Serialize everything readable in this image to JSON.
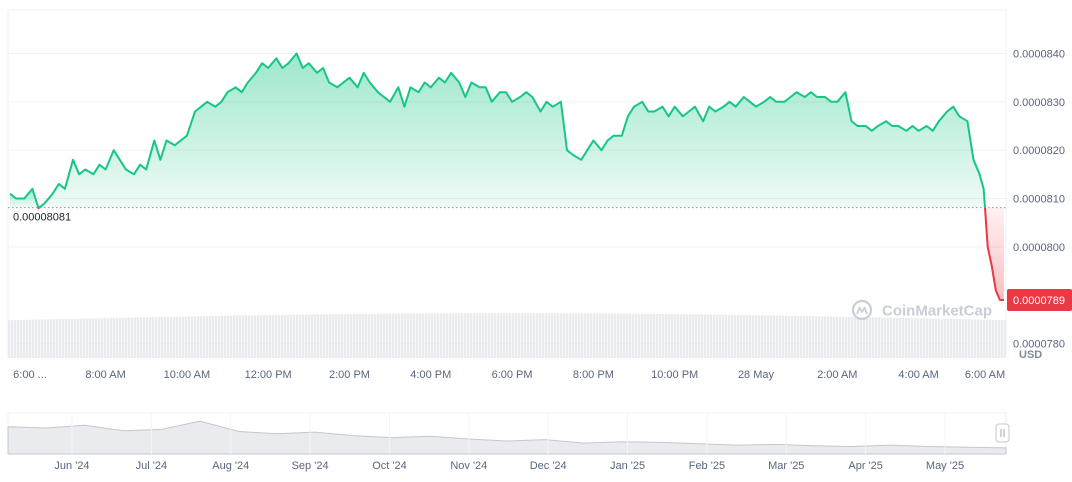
{
  "chart_data": {
    "type": "area",
    "currency": "USD",
    "watermark": "CoinMarketCap",
    "ylim": [
      7.77e-05,
      8.49e-05
    ],
    "yticks": [
      "0.0000840",
      "0.0000830",
      "0.0000820",
      "0.0000810",
      "0.0000800",
      "0.0000780"
    ],
    "ytick_values": [
      8.4e-05,
      8.3e-05,
      8.2e-05,
      8.1e-05,
      8e-05,
      7.8e-05
    ],
    "reference_price": 8.081e-05,
    "reference_label": "0.00008081",
    "current_price": 7.89e-05,
    "current_label": "0.0000789",
    "xticks": [
      "6:00 ...",
      "8:00 AM",
      "10:00 AM",
      "12:00 PM",
      "2:00 PM",
      "4:00 PM",
      "6:00 PM",
      "8:00 PM",
      "10:00 PM",
      "28 May",
      "2:00 AM",
      "4:00 AM",
      "6:00 AM"
    ],
    "xtick_hours": [
      5.6,
      8,
      10,
      12,
      14,
      16,
      18,
      20,
      22,
      24,
      26,
      28,
      30
    ],
    "hours": [
      5.65,
      5.8,
      6.0,
      6.2,
      6.35,
      6.5,
      6.7,
      6.85,
      7.0,
      7.2,
      7.35,
      7.5,
      7.7,
      7.85,
      8.0,
      8.2,
      8.35,
      8.5,
      8.7,
      8.85,
      9.0,
      9.2,
      9.35,
      9.5,
      9.7,
      9.85,
      10.0,
      10.2,
      10.35,
      10.5,
      10.7,
      10.85,
      11.0,
      11.2,
      11.35,
      11.5,
      11.7,
      11.85,
      12.0,
      12.2,
      12.35,
      12.5,
      12.7,
      12.85,
      13.0,
      13.2,
      13.35,
      13.5,
      13.7,
      13.85,
      14.0,
      14.2,
      14.35,
      14.5,
      14.7,
      14.85,
      15.0,
      15.2,
      15.35,
      15.5,
      15.7,
      15.85,
      16.0,
      16.2,
      16.35,
      16.5,
      16.7,
      16.85,
      17.0,
      17.2,
      17.35,
      17.5,
      17.7,
      17.85,
      18.0,
      18.2,
      18.35,
      18.5,
      18.7,
      18.85,
      19.0,
      19.2,
      19.35,
      19.5,
      19.7,
      19.85,
      20.0,
      20.2,
      20.35,
      20.5,
      20.7,
      20.85,
      21.0,
      21.2,
      21.35,
      21.5,
      21.7,
      21.85,
      22.0,
      22.2,
      22.35,
      22.5,
      22.7,
      22.85,
      23.0,
      23.2,
      23.35,
      23.5,
      23.7,
      23.85,
      24.0,
      24.2,
      24.35,
      24.5,
      24.7,
      24.85,
      25.0,
      25.2,
      25.35,
      25.5,
      25.7,
      25.85,
      26.0,
      26.2,
      26.35,
      26.5,
      26.7,
      26.85,
      27.0,
      27.2,
      27.35,
      27.5,
      27.7,
      27.85,
      28.0,
      28.2,
      28.35,
      28.5,
      28.7,
      28.85,
      29.0,
      29.2,
      29.35,
      29.5,
      29.6,
      29.7,
      29.8,
      29.9,
      30.0,
      30.1
    ],
    "prices": [
      8.11e-05,
      8.1e-05,
      8.1e-05,
      8.12e-05,
      8.08e-05,
      8.09e-05,
      8.11e-05,
      8.13e-05,
      8.12e-05,
      8.18e-05,
      8.15e-05,
      8.16e-05,
      8.15e-05,
      8.17e-05,
      8.16e-05,
      8.2e-05,
      8.18e-05,
      8.16e-05,
      8.15e-05,
      8.17e-05,
      8.16e-05,
      8.22e-05,
      8.18e-05,
      8.22e-05,
      8.21e-05,
      8.22e-05,
      8.23e-05,
      8.28e-05,
      8.29e-05,
      8.3e-05,
      8.29e-05,
      8.3e-05,
      8.32e-05,
      8.33e-05,
      8.32e-05,
      8.34e-05,
      8.36e-05,
      8.38e-05,
      8.37e-05,
      8.39e-05,
      8.37e-05,
      8.38e-05,
      8.4e-05,
      8.37e-05,
      8.38e-05,
      8.36e-05,
      8.37e-05,
      8.34e-05,
      8.33e-05,
      8.34e-05,
      8.35e-05,
      8.33e-05,
      8.36e-05,
      8.34e-05,
      8.32e-05,
      8.31e-05,
      8.3e-05,
      8.33e-05,
      8.29e-05,
      8.33e-05,
      8.32e-05,
      8.34e-05,
      8.33e-05,
      8.35e-05,
      8.34e-05,
      8.36e-05,
      8.34e-05,
      8.31e-05,
      8.34e-05,
      8.33e-05,
      8.33e-05,
      8.3e-05,
      8.32e-05,
      8.32e-05,
      8.3e-05,
      8.31e-05,
      8.32e-05,
      8.31e-05,
      8.28e-05,
      8.3e-05,
      8.29e-05,
      8.3e-05,
      8.2e-05,
      8.19e-05,
      8.18e-05,
      8.2e-05,
      8.22e-05,
      8.2e-05,
      8.22e-05,
      8.23e-05,
      8.23e-05,
      8.27e-05,
      8.29e-05,
      8.3e-05,
      8.28e-05,
      8.28e-05,
      8.29e-05,
      8.27e-05,
      8.29e-05,
      8.27e-05,
      8.28e-05,
      8.29e-05,
      8.26e-05,
      8.29e-05,
      8.28e-05,
      8.29e-05,
      8.3e-05,
      8.29e-05,
      8.31e-05,
      8.3e-05,
      8.29e-05,
      8.3e-05,
      8.31e-05,
      8.3e-05,
      8.3e-05,
      8.31e-05,
      8.32e-05,
      8.31e-05,
      8.32e-05,
      8.31e-05,
      8.31e-05,
      8.3e-05,
      8.3e-05,
      8.32e-05,
      8.26e-05,
      8.25e-05,
      8.25e-05,
      8.24e-05,
      8.25e-05,
      8.26e-05,
      8.25e-05,
      8.25e-05,
      8.24e-05,
      8.25e-05,
      8.24e-05,
      8.25e-05,
      8.24e-05,
      8.26e-05,
      8.28e-05,
      8.29e-05,
      8.27e-05,
      8.26e-05,
      8.18e-05,
      8.15e-05,
      8.12e-05,
      8e-05,
      7.96e-05,
      7.91e-05,
      7.89e-05,
      7.89e-05
    ],
    "navigator": {
      "xticks": [
        "Jun '24",
        "Jul '24",
        "Aug '24",
        "Sep '24",
        "Oct '24",
        "Nov '24",
        "Dec '24",
        "Jan '25",
        "Feb '25",
        "Mar '25",
        "Apr '25",
        "May '25"
      ],
      "values": [
        0.00011,
        0.000108,
        0.000112,
        0.000104,
        0.000106,
        0.000118,
        0.000103,
        9.95e-05,
        0.000102,
        9.7e-05,
        9.4e-05,
        9.6e-05,
        9.2e-05,
        8.9e-05,
        9.1e-05,
        8.6e-05,
        8.8e-05,
        8.7e-05,
        8.5e-05,
        8.3e-05,
        8.4e-05,
        8.2e-05,
        8.1e-05,
        8.3e-05,
        8.1e-05,
        8e-05,
        7.9e-05
      ]
    },
    "colors": {
      "up": "#16c784",
      "down": "#ea3943",
      "up_fill": "#16c784",
      "grid": "#eff2f5",
      "text": "#58667e",
      "volume": "#e9ebef",
      "navigator_fill": "#e9ebef",
      "navigator_line": "#c4c8cf"
    }
  }
}
